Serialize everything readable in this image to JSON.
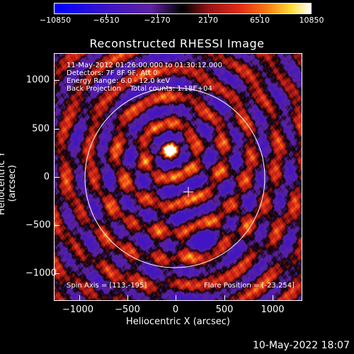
{
  "colorbar": {
    "ticks": [
      "−10850",
      "−6510",
      "−2170",
      "2170",
      "6510",
      "10850"
    ],
    "min": -10850,
    "max": 10850
  },
  "title": "Reconstructed RHESSI Image",
  "info": {
    "line1": "11-May-2012 01:26:00.000 to 01:30:12.000",
    "line2": "Detectors: 7F 8F 9F, Att 0",
    "line3": "Energy Range: 6.0 - 12.0 keV",
    "line4": "Back Projection    Total counts: 1.18E+04",
    "spin_axis": "Spin Axis = [113,-195]",
    "flare_position": "Flare Position = [-23,254]"
  },
  "axes": {
    "xlabel": "Heliocentric X (arcsec)",
    "ylabel": "Heliocentric Y (arcsec)",
    "xticks": [
      "−1000",
      "−500",
      "0",
      "500",
      "1000"
    ],
    "yticks": [
      "1000",
      "500",
      "0",
      "−500",
      "−1000"
    ],
    "xrange": [
      -1300,
      1300
    ],
    "yrange": [
      -1300,
      1300
    ]
  },
  "timestamp": "10-May-2022 18:07",
  "colors": {
    "background": "#000000",
    "negative": "#5a1e9a",
    "positive": "#d8321c",
    "peak": "#ffff60"
  }
}
